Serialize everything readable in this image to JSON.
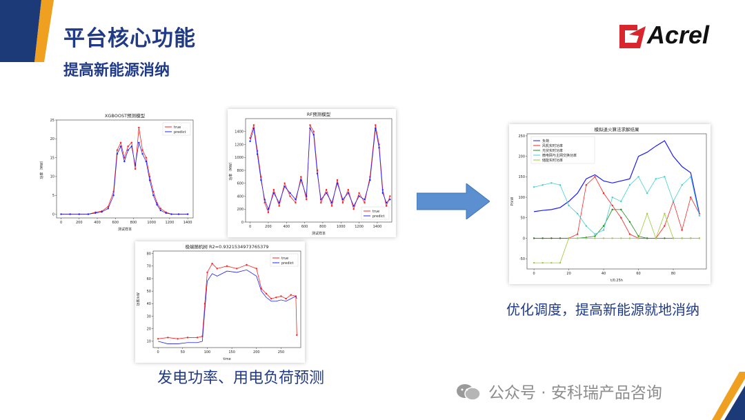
{
  "title": "平台核心功能",
  "subtitle": "提高新能源消纳",
  "logo_text": "Acrel",
  "caption_left": "发电功率、用电负荷预测",
  "caption_right": "优化调度，提高新能源就地消纳",
  "footer": "公众号 · 安科瑞产品咨询",
  "colors": {
    "accent": "#1f3a87",
    "orange": "#f0a020",
    "navy": "#1d3a78",
    "logo_red": "#d7262e",
    "arrow": "#5b8fd0"
  },
  "chart_data": [
    {
      "type": "line",
      "title": "XGBOOST预测模型",
      "xlabel": "测试样本",
      "ylabel": "功率（MW）",
      "xlim": [
        -50,
        1460
      ],
      "ylim": [
        -1,
        25
      ],
      "xticks": [
        "0",
        "200",
        "400",
        "600",
        "800",
        "1000",
        "1200",
        "1400"
      ],
      "yticks": [
        "0",
        "5",
        "10",
        "15",
        "20",
        "25"
      ],
      "legend": [
        "true",
        "predict"
      ],
      "x": [
        0,
        100,
        200,
        300,
        380,
        450,
        520,
        580,
        620,
        660,
        700,
        740,
        780,
        820,
        860,
        900,
        940,
        980,
        1020,
        1060,
        1100,
        1160,
        1220,
        1300,
        1400
      ],
      "series": [
        {
          "name": "true",
          "values": [
            0,
            0,
            0,
            0,
            0.5,
            0.8,
            2,
            6,
            17,
            19,
            15,
            18,
            19,
            12,
            23,
            17,
            15,
            10,
            6,
            3,
            1.5,
            0.5,
            0,
            0,
            0
          ]
        },
        {
          "name": "predict",
          "values": [
            0,
            0,
            0,
            0,
            0.3,
            0.6,
            1.5,
            5,
            16,
            18,
            14,
            17,
            18,
            13,
            19,
            16,
            14,
            9,
            5,
            2.5,
            1,
            0.3,
            0,
            0,
            0
          ]
        }
      ]
    },
    {
      "type": "line",
      "title": "RF预测模型",
      "xlabel": "测试样本",
      "ylabel": "功率（MW）",
      "xlim": [
        -50,
        1560
      ],
      "ylim": [
        0,
        1600
      ],
      "xticks": [
        "0",
        "200",
        "400",
        "600",
        "800",
        "1000",
        "1200",
        "1400"
      ],
      "yticks": [
        "0",
        "200",
        "400",
        "600",
        "800",
        "1000",
        "1200",
        "1400"
      ],
      "legend": [
        "true",
        "predict"
      ],
      "x": [
        0,
        40,
        80,
        120,
        160,
        200,
        260,
        320,
        380,
        440,
        500,
        560,
        620,
        660,
        700,
        740,
        780,
        840,
        900,
        960,
        1020,
        1080,
        1140,
        1200,
        1260,
        1320,
        1380,
        1420,
        1460,
        1500,
        1540
      ],
      "series": [
        {
          "name": "true",
          "values": [
            1300,
            1500,
            1100,
            700,
            300,
            150,
            500,
            250,
            600,
            400,
            300,
            700,
            350,
            1500,
            1400,
            800,
            300,
            500,
            250,
            650,
            300,
            500,
            200,
            450,
            300,
            700,
            1500,
            1200,
            500,
            250,
            400
          ]
        },
        {
          "name": "predict",
          "values": [
            1250,
            1450,
            1050,
            650,
            350,
            200,
            450,
            300,
            550,
            450,
            350,
            650,
            400,
            1450,
            1350,
            750,
            350,
            450,
            300,
            600,
            350,
            450,
            250,
            400,
            350,
            650,
            1450,
            1150,
            450,
            300,
            350
          ]
        }
      ]
    },
    {
      "type": "line",
      "title": "极端随机树 R2=0.9321534973765379",
      "xlabel": "time",
      "ylabel": "功率/kW",
      "xlim": [
        -10,
        290
      ],
      "ylim": [
        5,
        82
      ],
      "xticks": [
        "0",
        "50",
        "100",
        "150",
        "200",
        "250"
      ],
      "yticks": [
        "10",
        "20",
        "30",
        "40",
        "50",
        "60",
        "70",
        "80"
      ],
      "legend": [
        "true",
        "predict"
      ],
      "x": [
        0,
        20,
        40,
        60,
        80,
        90,
        95,
        100,
        110,
        120,
        140,
        160,
        180,
        200,
        210,
        220,
        230,
        240,
        250,
        260,
        270,
        280,
        282
      ],
      "series": [
        {
          "name": "true",
          "values": [
            12,
            13,
            12,
            13,
            13,
            14,
            40,
            65,
            72,
            68,
            70,
            68,
            71,
            68,
            52,
            48,
            44,
            45,
            46,
            44,
            47,
            46,
            15
          ]
        },
        {
          "name": "predict",
          "values": [
            10,
            8,
            8,
            9,
            9,
            10,
            35,
            58,
            64,
            62,
            66,
            65,
            67,
            62,
            50,
            45,
            42,
            42,
            43,
            42,
            44,
            46,
            44
          ]
        }
      ]
    },
    {
      "type": "line",
      "title": "模拟退火算法求解结果",
      "xlabel": "t/0.25h",
      "ylabel": "P/kW",
      "xlim": [
        -4,
        99
      ],
      "ylim": [
        -75,
        255
      ],
      "xticks": [
        "0",
        "20",
        "40",
        "60",
        "80"
      ],
      "yticks": [
        "-50",
        "0",
        "50",
        "100",
        "150",
        "200",
        "250"
      ],
      "legend": [
        "负荷",
        "风机实时功率",
        "光伏实时功率",
        "微电网与主网交换功率",
        "储能实时功率"
      ],
      "x": [
        0,
        5,
        10,
        15,
        20,
        25,
        30,
        35,
        40,
        45,
        50,
        55,
        60,
        65,
        70,
        75,
        80,
        85,
        90,
        95
      ],
      "series": [
        {
          "name": "负荷",
          "values": [
            65,
            68,
            70,
            75,
            90,
            110,
            145,
            155,
            140,
            135,
            140,
            145,
            200,
            210,
            225,
            238,
            200,
            175,
            160,
            60
          ]
        },
        {
          "name": "风机实时功率",
          "values": [
            0,
            0,
            0,
            0,
            0,
            10,
            130,
            150,
            110,
            80,
            50,
            10,
            0,
            0,
            0,
            30,
            90,
            20,
            100,
            60
          ]
        },
        {
          "name": "光伏实时功率",
          "values": [
            0,
            0,
            0,
            0,
            0,
            0,
            2,
            5,
            30,
            70,
            70,
            40,
            5,
            0,
            0,
            0,
            0,
            0,
            0,
            0
          ]
        },
        {
          "name": "微电网与主网交换功率",
          "values": [
            125,
            130,
            135,
            130,
            80,
            60,
            30,
            10,
            20,
            100,
            90,
            130,
            150,
            110,
            145,
            150,
            90,
            130,
            150,
            55
          ]
        },
        {
          "name": "储能实时功率",
          "values": [
            -60,
            -60,
            -60,
            -60,
            0,
            0,
            0,
            0,
            0,
            0,
            0,
            0,
            0,
            60,
            0,
            60,
            0,
            0,
            0,
            0
          ]
        }
      ]
    }
  ]
}
